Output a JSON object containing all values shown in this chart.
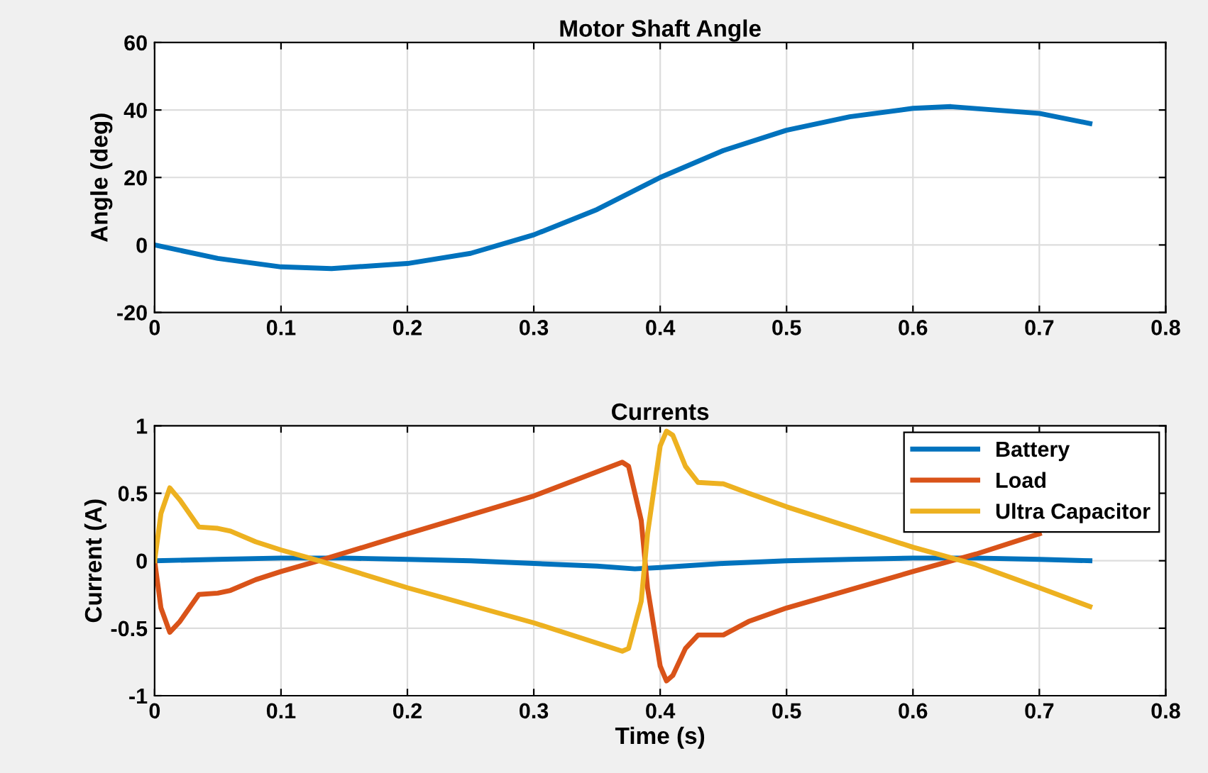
{
  "chart_data": [
    {
      "type": "line",
      "title": "Motor Shaft Angle",
      "ylabel": "Angle (deg)",
      "xlim": [
        0,
        0.8
      ],
      "xticks": [
        0,
        0.1,
        0.2,
        0.3,
        0.4,
        0.5,
        0.6,
        0.7,
        0.8
      ],
      "ylim": [
        -20,
        60
      ],
      "yticks": [
        -20,
        0,
        20,
        40,
        60
      ],
      "grid": true,
      "legend": false,
      "series": [
        {
          "color": "#0072bd",
          "x": [
            0,
            0.05,
            0.1,
            0.14,
            0.2,
            0.25,
            0.3,
            0.35,
            0.4,
            0.45,
            0.5,
            0.55,
            0.6,
            0.63,
            0.7,
            0.74
          ],
          "values": [
            0,
            -4,
            -6.5,
            -7,
            -5.5,
            -2.5,
            3,
            10.5,
            20,
            28,
            34,
            38,
            40.5,
            41,
            39,
            36
          ]
        }
      ]
    },
    {
      "type": "line",
      "title": "Currents",
      "xlabel": "Time (s)",
      "ylabel": "Current (A)",
      "xlim": [
        0,
        0.8
      ],
      "xticks": [
        0,
        0.1,
        0.2,
        0.3,
        0.4,
        0.5,
        0.6,
        0.7,
        0.8
      ],
      "ylim": [
        -1,
        1
      ],
      "yticks": [
        -1,
        -0.5,
        0,
        0.5,
        1
      ],
      "grid": true,
      "legend": "top right",
      "series": [
        {
          "name": "Battery",
          "color": "#0072bd",
          "x": [
            0,
            0.05,
            0.1,
            0.15,
            0.2,
            0.25,
            0.3,
            0.35,
            0.38,
            0.4,
            0.45,
            0.5,
            0.55,
            0.6,
            0.65,
            0.7,
            0.74
          ],
          "values": [
            0,
            0.01,
            0.02,
            0.02,
            0.01,
            0,
            -0.02,
            -0.04,
            -0.06,
            -0.05,
            -0.02,
            0,
            0.01,
            0.02,
            0.02,
            0.01,
            0
          ]
        },
        {
          "name": "Load",
          "color": "#d95319",
          "x": [
            0,
            0.005,
            0.012,
            0.02,
            0.035,
            0.05,
            0.06,
            0.08,
            0.1,
            0.13,
            0.2,
            0.3,
            0.37,
            0.375,
            0.385,
            0.39,
            0.4,
            0.405,
            0.41,
            0.42,
            0.43,
            0.45,
            0.47,
            0.5,
            0.6,
            0.65,
            0.7
          ],
          "values": [
            0,
            -0.35,
            -0.53,
            -0.45,
            -0.25,
            -0.24,
            -0.22,
            -0.14,
            -0.08,
            0,
            0.2,
            0.48,
            0.73,
            0.7,
            0.3,
            -0.2,
            -0.78,
            -0.89,
            -0.85,
            -0.65,
            -0.55,
            -0.55,
            -0.45,
            -0.35,
            -0.08,
            0.05,
            0.2
          ]
        },
        {
          "name": "Ultra Capacitor",
          "color": "#edb120",
          "x": [
            0,
            0.005,
            0.012,
            0.02,
            0.035,
            0.05,
            0.06,
            0.08,
            0.1,
            0.13,
            0.2,
            0.3,
            0.37,
            0.375,
            0.385,
            0.39,
            0.4,
            0.405,
            0.41,
            0.42,
            0.43,
            0.45,
            0.47,
            0.5,
            0.6,
            0.65,
            0.7,
            0.74
          ],
          "values": [
            0,
            0.35,
            0.54,
            0.45,
            0.25,
            0.24,
            0.22,
            0.14,
            0.08,
            0,
            -0.2,
            -0.46,
            -0.67,
            -0.65,
            -0.3,
            0.2,
            0.85,
            0.96,
            0.93,
            0.7,
            0.58,
            0.57,
            0.5,
            0.4,
            0.1,
            -0.03,
            -0.2,
            -0.34
          ]
        }
      ]
    }
  ]
}
